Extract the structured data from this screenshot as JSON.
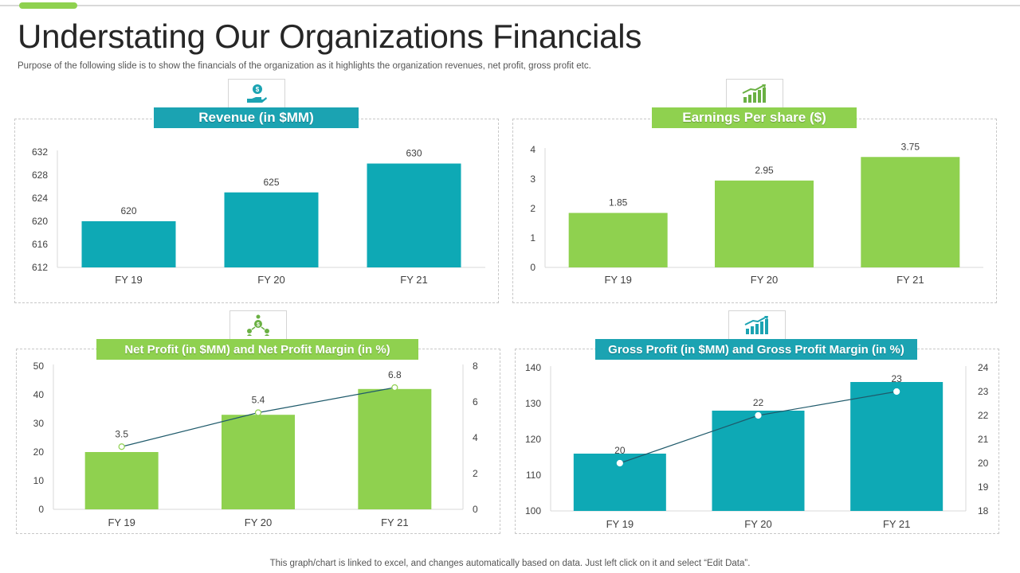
{
  "header": {
    "title": "Understating Our Organizations Financials",
    "subtitle": "Purpose of the following slide is to show the financials of the organization as it highlights the organization revenues, net profit, gross profit etc."
  },
  "footer": {
    "note": "This graph/chart is linked to excel,  and changes automatically based on data. Just left click on it and select “Edit Data”."
  },
  "colors": {
    "teal": "#0ea9b5",
    "green": "#8fd14f",
    "line": "#1f5a6b",
    "axis": "#d9d9d9"
  },
  "panels": [
    {
      "banner": "Revenue (in $MM)",
      "icon": "money-hand-icon",
      "color": "#1ba3b2"
    },
    {
      "banner": "Earnings Per share ($)",
      "icon": "growth-bars-icon",
      "color": "#8fd14f"
    },
    {
      "banner": "Net Profit (in  $MM) and Net Profit Margin (in  %)",
      "icon": "network-money-icon",
      "color": "#8fd14f"
    },
    {
      "banner": "Gross Profit (in $MM) and Gross Profit Margin (in  %)",
      "icon": "growth-chart-icon",
      "color": "#1ba3b2"
    }
  ],
  "chart_data": [
    {
      "type": "bar",
      "title": "Revenue (in $MM)",
      "categories": [
        "FY 19",
        "FY 20",
        "FY 21"
      ],
      "values": [
        620,
        625,
        630
      ],
      "ylim": [
        612,
        632
      ],
      "yticks": [
        "612",
        "616",
        "620",
        "624",
        "628",
        "632"
      ],
      "data_labels": [
        "620",
        "625",
        "630"
      ],
      "bar_color": "#0ea9b5",
      "grid": false
    },
    {
      "type": "bar",
      "title": "Earnings Per share ($)",
      "categories": [
        "FY 19",
        "FY 20",
        "FY 21"
      ],
      "values": [
        1.85,
        2.95,
        3.75
      ],
      "ylim": [
        0,
        4
      ],
      "yticks": [
        "0",
        "1",
        "2",
        "3",
        "4"
      ],
      "data_labels": [
        "1.85",
        "2.95",
        "3.75"
      ],
      "bar_color": "#8fd14f",
      "grid": false
    },
    {
      "type": "bar",
      "title": "Net Profit (in  $MM) and Net Profit Margin (in  %)",
      "categories": [
        "FY 19",
        "FY 20",
        "FY 21"
      ],
      "series": [
        {
          "values": [
            20,
            33,
            42
          ],
          "axis": "left",
          "kind": "bar"
        },
        {
          "values": [
            3.5,
            5.4,
            6.8
          ],
          "axis": "right",
          "kind": "line"
        }
      ],
      "ylim": [
        0,
        50
      ],
      "yticks": [
        "0",
        "10",
        "20",
        "30",
        "40",
        "50"
      ],
      "y2lim": [
        0,
        8
      ],
      "y2ticks": [
        "0",
        "2",
        "4",
        "6",
        "8"
      ],
      "data_labels": [
        "3.5",
        "5.4",
        "6.8"
      ],
      "bar_color": "#8fd14f",
      "grid": false
    },
    {
      "type": "bar",
      "title": "Gross Profit (in $MM) and Gross Profit Margin (in  %)",
      "categories": [
        "FY 19",
        "FY 20",
        "FY 21"
      ],
      "series": [
        {
          "values": [
            116,
            128,
            136
          ],
          "axis": "left",
          "kind": "bar"
        },
        {
          "values": [
            20,
            22,
            23
          ],
          "axis": "right",
          "kind": "line"
        }
      ],
      "ylim": [
        100,
        140
      ],
      "yticks": [
        "100",
        "110",
        "120",
        "130",
        "140"
      ],
      "y2lim": [
        18,
        24
      ],
      "y2ticks": [
        "18",
        "19",
        "20",
        "21",
        "22",
        "23",
        "24"
      ],
      "data_labels": [
        "20",
        "22",
        "23"
      ],
      "bar_color": "#0ea9b5",
      "grid": false
    }
  ]
}
